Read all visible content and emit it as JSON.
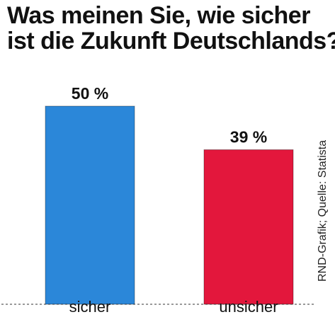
{
  "title_lines": [
    "Was meinen Sie, wie sicher",
    "ist die Zukunft Deutschlands?"
  ],
  "source": "RND-Grafik; Quelle: Statista",
  "chart_data": {
    "type": "bar",
    "title": "Was meinen Sie, wie sicher ist die Zukunft Deutschlands?",
    "categories": [
      "sicher",
      "unsicher"
    ],
    "values": [
      50,
      39
    ],
    "value_labels": [
      "50 %",
      "39 %"
    ],
    "colors": [
      "#2b87d9",
      "#e3173c"
    ],
    "ylim": [
      0,
      50
    ],
    "grid": false,
    "baseline_style": "dashed"
  }
}
